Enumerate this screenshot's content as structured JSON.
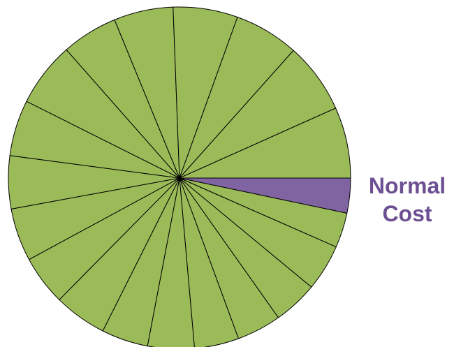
{
  "chart_data": {
    "type": "pie",
    "categories": [
      "Normal Cost",
      null,
      null,
      null,
      null,
      null,
      null,
      null,
      null,
      null,
      null,
      null,
      null,
      null,
      null,
      null,
      null,
      null,
      null,
      null
    ],
    "values": [
      3.3,
      3.3,
      4.4,
      4.2,
      4.2,
      4.2,
      4.4,
      4.4,
      5,
      4.7,
      5,
      5,
      5.3,
      6.1,
      5.3,
      5.6,
      6.1,
      6.1,
      6.7,
      6.7
    ],
    "colors": [
      "#8064a2",
      "#9bbb59",
      "#9bbb59",
      "#9bbb59",
      "#9bbb59",
      "#9bbb59",
      "#9bbb59",
      "#9bbb59",
      "#9bbb59",
      "#9bbb59",
      "#9bbb59",
      "#9bbb59",
      "#9bbb59",
      "#9bbb59",
      "#9bbb59",
      "#9bbb59",
      "#9bbb59",
      "#9bbb59",
      "#9bbb59",
      "#9bbb59"
    ],
    "label_color": "#6d5093"
  }
}
